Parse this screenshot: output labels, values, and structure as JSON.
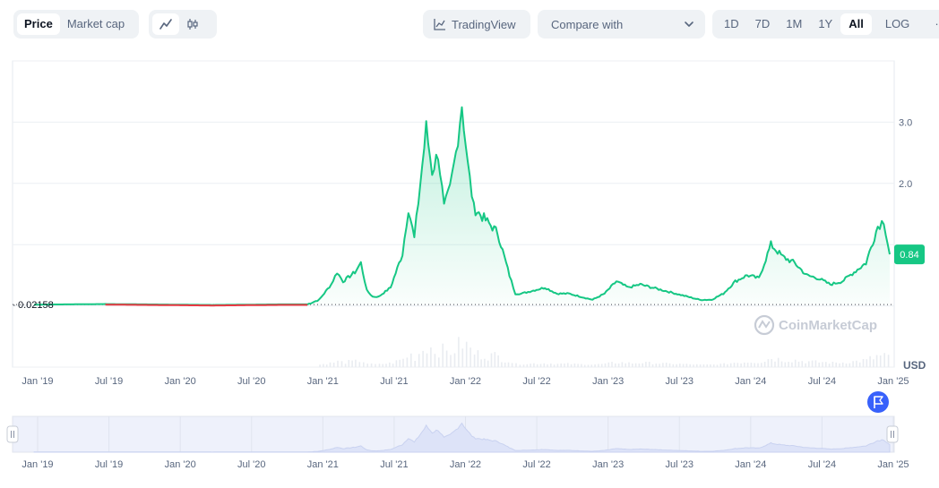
{
  "toolbar": {
    "metric_tabs": [
      {
        "label": "Price",
        "active": true
      },
      {
        "label": "Market cap",
        "active": false
      }
    ],
    "chart_type_icons": [
      {
        "name": "line-chart-icon",
        "active": true
      },
      {
        "name": "candlestick-icon",
        "active": false
      }
    ],
    "tradingview_label": "TradingView",
    "compare_label": "Compare with",
    "ranges": [
      {
        "label": "1D",
        "active": false
      },
      {
        "label": "7D",
        "active": false
      },
      {
        "label": "1M",
        "active": false
      },
      {
        "label": "1Y",
        "active": false
      },
      {
        "label": "All",
        "active": true
      },
      {
        "label": "LOG",
        "active": false
      }
    ],
    "more_label": "···"
  },
  "chart_data": {
    "type": "line",
    "currency_label": "USD",
    "watermark": "CoinMarketCap",
    "y_ticks": [
      3.0,
      2.0
    ],
    "y_tick_labels": [
      "3.0",
      "2.0"
    ],
    "ylim": [
      -1.0,
      4.0
    ],
    "reference_price": 0.02158,
    "reference_label": "0.02158",
    "current_price": 0.84,
    "current_label": "0.84",
    "x_tick_labels": [
      "Jan '19",
      "Jul '19",
      "Jan '20",
      "Jul '20",
      "Jan '21",
      "Jul '21",
      "Jan '22",
      "Jul '22",
      "Jan '23",
      "Jul '23",
      "Jan '24",
      "Jul '24",
      "Jan '25"
    ],
    "x_start": "2019-01",
    "x_end": "2025-01",
    "colors": {
      "up": "#16c784",
      "down": "#ea3943",
      "navigator": "#dde3f8"
    },
    "series": [
      {
        "x": [
          "2019-01",
          "2019-04",
          "2019-07",
          "2019-10",
          "2020-01",
          "2020-04",
          "2020-07",
          "2020-10",
          "2020-12",
          "2021-01",
          "2021-02",
          "2021-02",
          "2021-03",
          "2021-04",
          "2021-04",
          "2021-05",
          "2021-05",
          "2021-06",
          "2021-07",
          "2021-08",
          "2021-08",
          "2021-09",
          "2021-09",
          "2021-10",
          "2021-10",
          "2021-11",
          "2021-11",
          "2021-12",
          "2021-12",
          "2022-01",
          "2022-01",
          "2022-02",
          "2022-03",
          "2022-04",
          "2022-05",
          "2022-05",
          "2022-06",
          "2022-07",
          "2022-08",
          "2022-09",
          "2022-10",
          "2022-11",
          "2022-12",
          "2023-01",
          "2023-02",
          "2023-03",
          "2023-04",
          "2023-05",
          "2023-06",
          "2023-07",
          "2023-08",
          "2023-09",
          "2023-10",
          "2023-11",
          "2023-12",
          "2024-01",
          "2024-02",
          "2024-03",
          "2024-04",
          "2024-05",
          "2024-06",
          "2024-07",
          "2024-08",
          "2024-09",
          "2024-10",
          "2024-11",
          "2024-12",
          "2024-12",
          "2025-01"
        ],
        "y": [
          0.02,
          0.025,
          0.03,
          0.025,
          0.02,
          0.015,
          0.02,
          0.025,
          0.025,
          0.1,
          0.35,
          0.55,
          0.4,
          0.55,
          0.7,
          0.25,
          0.15,
          0.15,
          0.3,
          0.85,
          1.6,
          1.1,
          2.0,
          2.9,
          2.2,
          2.5,
          1.6,
          1.9,
          2.5,
          3.3,
          2.3,
          1.6,
          1.4,
          1.2,
          0.5,
          0.2,
          0.2,
          0.25,
          0.3,
          0.2,
          0.2,
          0.15,
          0.1,
          0.2,
          0.4,
          0.3,
          0.35,
          0.3,
          0.25,
          0.2,
          0.15,
          0.1,
          0.1,
          0.2,
          0.4,
          0.5,
          0.45,
          1.0,
          0.8,
          0.7,
          0.5,
          0.45,
          0.35,
          0.4,
          0.55,
          0.7,
          1.3,
          1.4,
          0.84
        ]
      }
    ]
  }
}
